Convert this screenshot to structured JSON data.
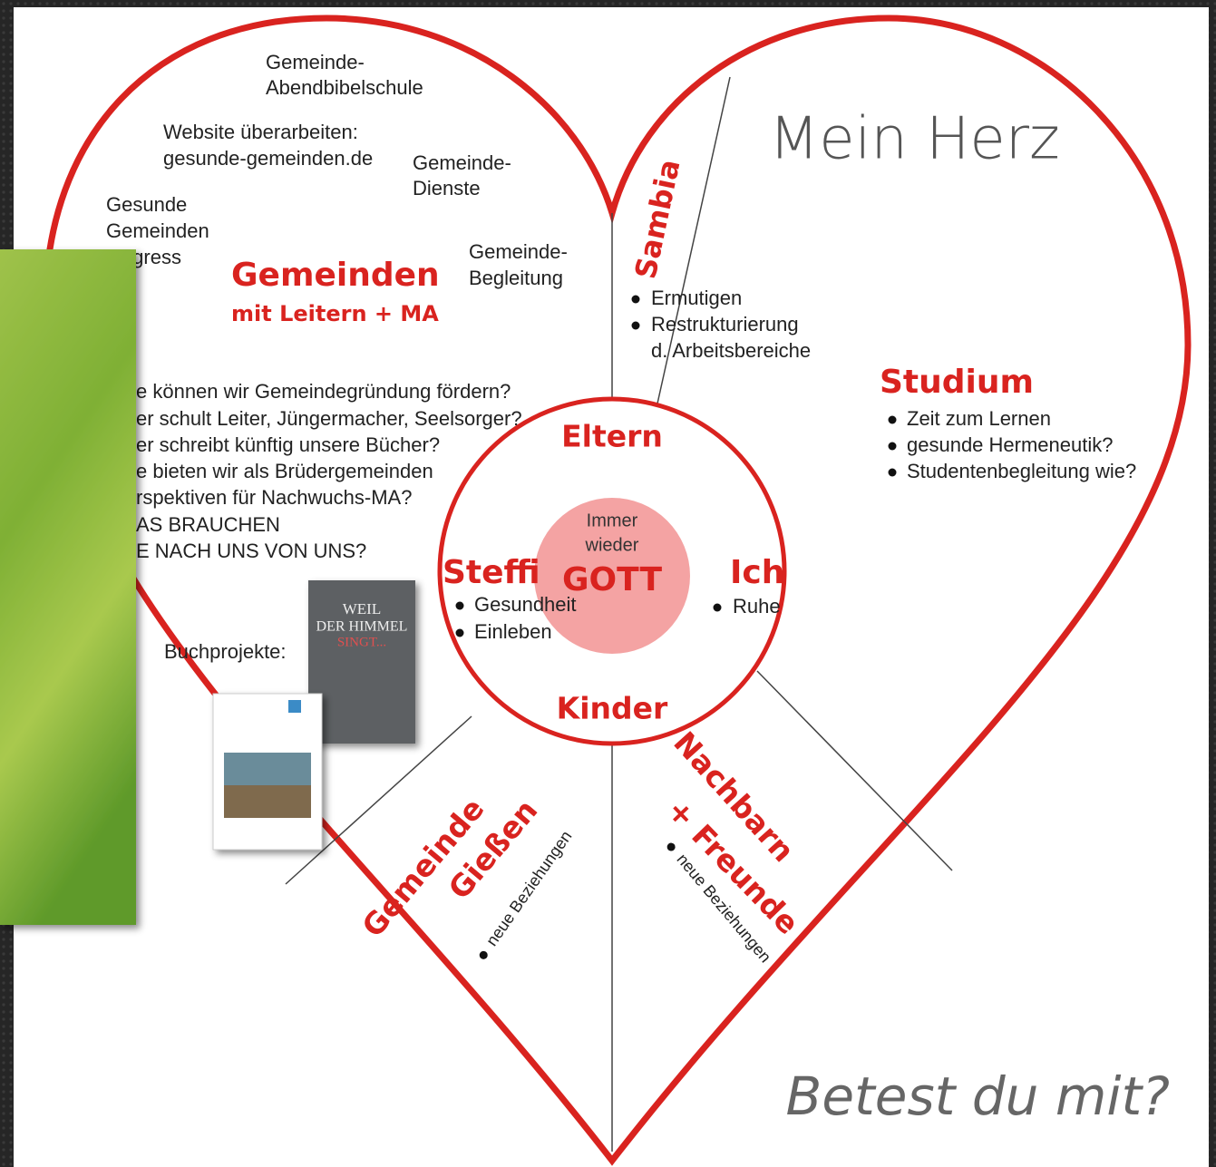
{
  "title": "Mein Herz",
  "footer": "Betest du mit?",
  "center": {
    "top": [
      "Immer",
      "wieder"
    ],
    "label": "GOTT"
  },
  "ring": {
    "top": "Eltern",
    "left": "Steffi",
    "right": "Ich",
    "bottom": "Kinder",
    "left_items": [
      "Gesundheit",
      "Einleben"
    ],
    "right_items": [
      "Ruhe"
    ]
  },
  "gemeinden": {
    "heading": "Gemeinden",
    "subheading": "mit Leitern + MA",
    "notes": [
      [
        "Gemeinde-",
        "Abendbibelschule"
      ],
      [
        "Website überarbeiten:",
        "gesunde-gemeinden.de"
      ],
      [
        "Gemeinde-",
        "Dienste"
      ],
      [
        "Gesunde",
        "Gemeinden",
        "Kongress"
      ],
      [
        "Gemeinde-",
        "Begleitung"
      ]
    ],
    "questions": [
      "e können wir Gemeindegründung fördern?",
      "er schult Leiter, Jüngermacher, Seelsorger?",
      "er schreibt künftig unsere Bücher?",
      "e bieten wir als Brüdergemeinden",
      "rspektiven für Nachwuchs-MA?",
      "AS BRAUCHEN",
      "E NACH UNS VON UNS?"
    ],
    "books_label": "Buchprojekte:",
    "book_cover": [
      "WEIL",
      "DER HIMMEL",
      "SINGT..."
    ]
  },
  "sambia": {
    "heading": "Sambia",
    "items": [
      [
        "Ermutigen"
      ],
      [
        "Restrukturierung",
        "d. Arbeitsbereiche"
      ]
    ]
  },
  "studium": {
    "heading": "Studium",
    "items": [
      "Zeit zum Lernen",
      "gesunde Hermeneutik?",
      "Studentenbegleitung wie?"
    ]
  },
  "giessen": {
    "heading": [
      "Gemeinde",
      "Gießen"
    ],
    "items": [
      "neue Beziehungen"
    ]
  },
  "nachbarn": {
    "heading": [
      "Nachbarn",
      "+ Freunde"
    ],
    "items": [
      "neue Beziehungen"
    ]
  }
}
